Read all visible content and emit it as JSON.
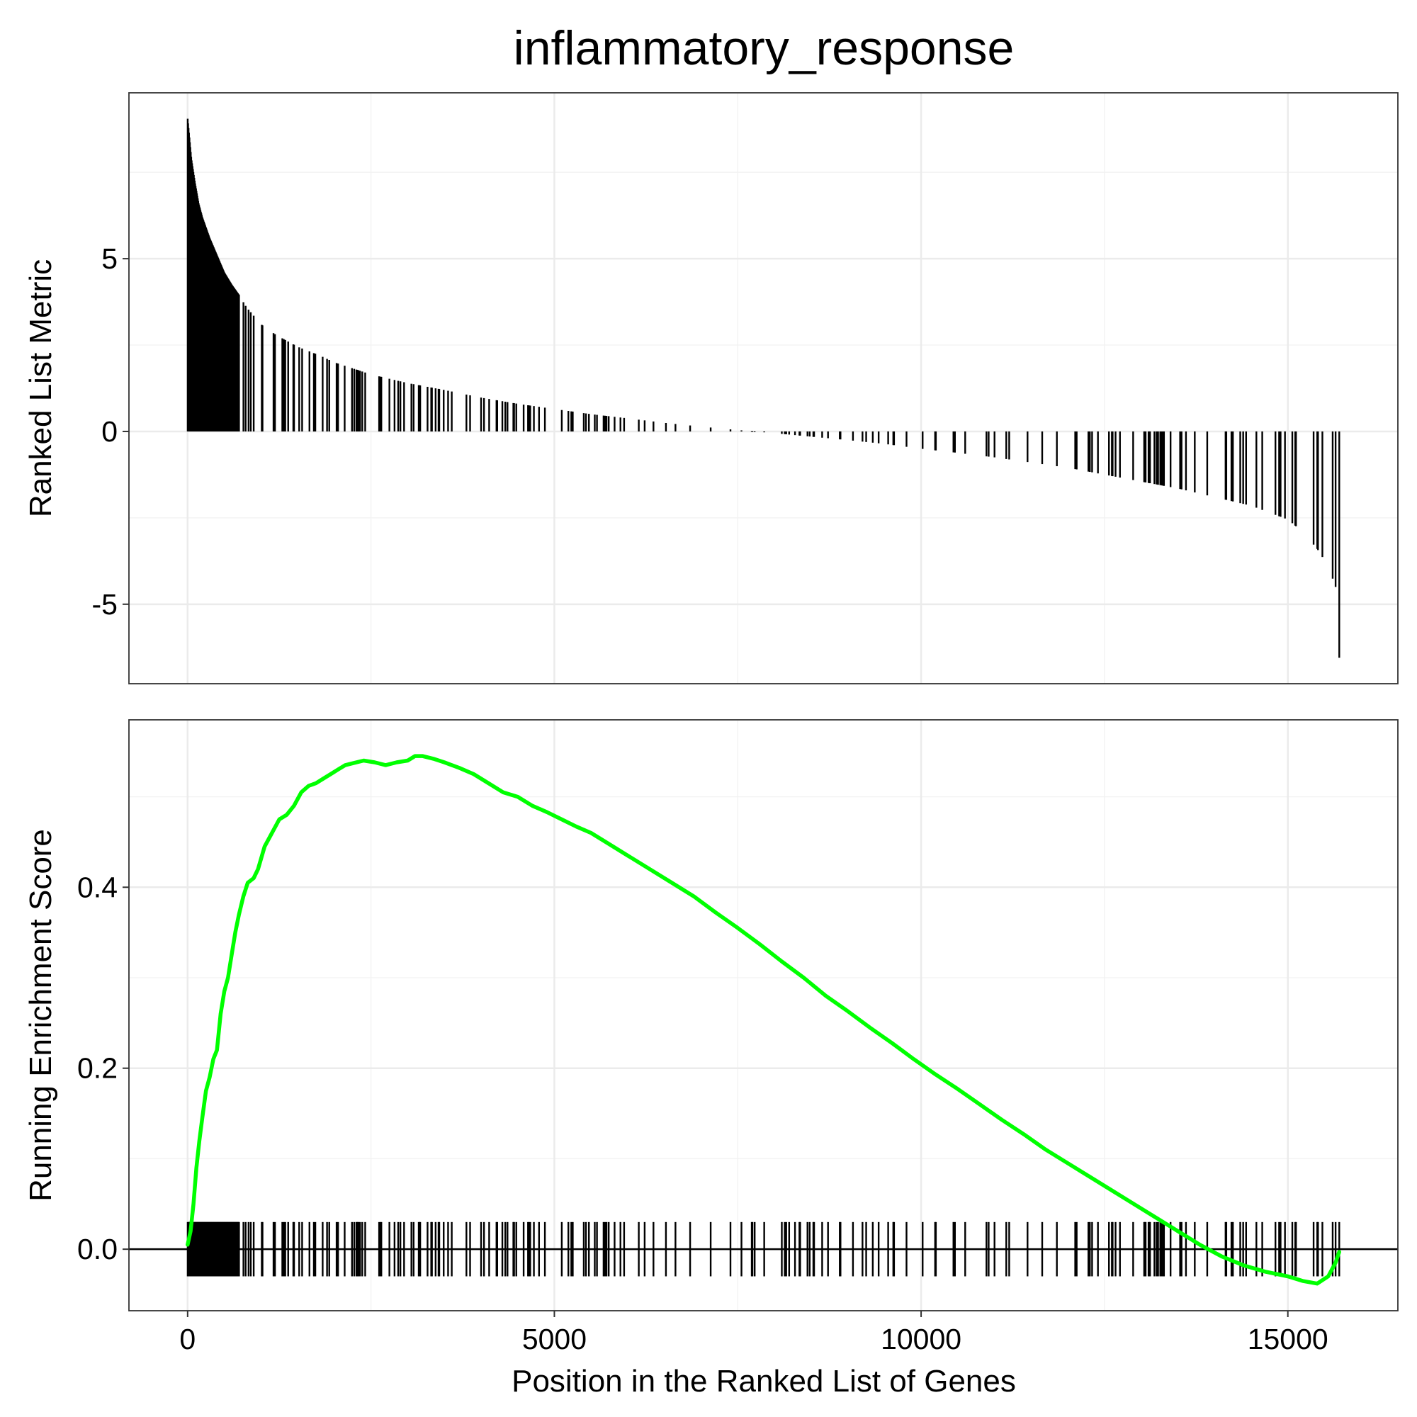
{
  "chart_data": {
    "type": "gsea",
    "title": "inflammatory_response",
    "xlabel": "Position in the Ranked List of Genes",
    "xlim": [
      -800,
      16500
    ],
    "x_ticks": [
      0,
      5000,
      10000,
      15000
    ],
    "x_tick_labels": [
      "0",
      "5000",
      "10000",
      "15000"
    ],
    "n_genes": 15700,
    "panels": {
      "ranked_metric": {
        "ylabel": "Ranked List Metric",
        "ylim": [
          -7.3,
          9.8
        ],
        "y_ticks": [
          5,
          0,
          -5
        ],
        "y_tick_labels": [
          "5",
          "0",
          "-5"
        ],
        "curve": [
          [
            0,
            9.05
          ],
          [
            20,
            8.6
          ],
          [
            50,
            7.9
          ],
          [
            100,
            7.2
          ],
          [
            150,
            6.6
          ],
          [
            200,
            6.2
          ],
          [
            300,
            5.6
          ],
          [
            400,
            5.1
          ],
          [
            500,
            4.6
          ],
          [
            600,
            4.25
          ],
          [
            700,
            3.95
          ],
          [
            800,
            3.6
          ],
          [
            1000,
            3.1
          ],
          [
            1200,
            2.8
          ],
          [
            1500,
            2.45
          ],
          [
            1800,
            2.2
          ],
          [
            2000,
            2.0
          ],
          [
            2500,
            1.65
          ],
          [
            3000,
            1.4
          ],
          [
            3500,
            1.2
          ],
          [
            4000,
            0.98
          ],
          [
            4500,
            0.8
          ],
          [
            5000,
            0.65
          ],
          [
            5500,
            0.5
          ],
          [
            6000,
            0.38
          ],
          [
            6500,
            0.25
          ],
          [
            7000,
            0.14
          ],
          [
            7500,
            0.04
          ],
          [
            8000,
            -0.05
          ],
          [
            8500,
            -0.15
          ],
          [
            9000,
            -0.25
          ],
          [
            9500,
            -0.36
          ],
          [
            10000,
            -0.5
          ],
          [
            10500,
            -0.62
          ],
          [
            11000,
            -0.75
          ],
          [
            11500,
            -0.9
          ],
          [
            12000,
            -1.05
          ],
          [
            12500,
            -1.25
          ],
          [
            13000,
            -1.45
          ],
          [
            13500,
            -1.65
          ],
          [
            14000,
            -1.9
          ],
          [
            14500,
            -2.15
          ],
          [
            15000,
            -2.55
          ],
          [
            15200,
            -2.9
          ],
          [
            15400,
            -3.4
          ],
          [
            15550,
            -3.9
          ],
          [
            15650,
            -4.5
          ],
          [
            15700,
            -6.55
          ]
        ]
      },
      "running_es": {
        "ylabel": "Running Enrichment Score",
        "ylim": [
          -0.068,
          0.585
        ],
        "y_ticks": [
          0.0,
          0.2,
          0.4
        ],
        "y_tick_labels": [
          "0.0",
          "0.2",
          "0.4"
        ],
        "line_color": "#00ff00",
        "rug_range": [
          -0.03,
          0.03
        ],
        "points": [
          [
            0,
            0.005
          ],
          [
            40,
            0.02
          ],
          [
            80,
            0.05
          ],
          [
            120,
            0.09
          ],
          [
            160,
            0.12
          ],
          [
            200,
            0.145
          ],
          [
            250,
            0.175
          ],
          [
            300,
            0.19
          ],
          [
            350,
            0.21
          ],
          [
            400,
            0.22
          ],
          [
            450,
            0.26
          ],
          [
            500,
            0.285
          ],
          [
            550,
            0.3
          ],
          [
            600,
            0.325
          ],
          [
            650,
            0.35
          ],
          [
            700,
            0.37
          ],
          [
            760,
            0.39
          ],
          [
            820,
            0.405
          ],
          [
            900,
            0.41
          ],
          [
            960,
            0.42
          ],
          [
            1050,
            0.445
          ],
          [
            1150,
            0.46
          ],
          [
            1250,
            0.475
          ],
          [
            1350,
            0.48
          ],
          [
            1450,
            0.49
          ],
          [
            1550,
            0.505
          ],
          [
            1650,
            0.512
          ],
          [
            1750,
            0.515
          ],
          [
            1850,
            0.52
          ],
          [
            1950,
            0.525
          ],
          [
            2050,
            0.53
          ],
          [
            2150,
            0.535
          ],
          [
            2250,
            0.537
          ],
          [
            2400,
            0.54
          ],
          [
            2550,
            0.538
          ],
          [
            2700,
            0.535
          ],
          [
            2850,
            0.538
          ],
          [
            3000,
            0.54
          ],
          [
            3100,
            0.545
          ],
          [
            3200,
            0.545
          ],
          [
            3350,
            0.542
          ],
          [
            3500,
            0.538
          ],
          [
            3700,
            0.532
          ],
          [
            3900,
            0.525
          ],
          [
            4100,
            0.515
          ],
          [
            4300,
            0.505
          ],
          [
            4500,
            0.5
          ],
          [
            4700,
            0.49
          ],
          [
            4900,
            0.483
          ],
          [
            5100,
            0.475
          ],
          [
            5300,
            0.467
          ],
          [
            5500,
            0.46
          ],
          [
            5700,
            0.45
          ],
          [
            6000,
            0.435
          ],
          [
            6300,
            0.42
          ],
          [
            6600,
            0.405
          ],
          [
            6900,
            0.39
          ],
          [
            7200,
            0.372
          ],
          [
            7500,
            0.355
          ],
          [
            7800,
            0.337
          ],
          [
            8100,
            0.318
          ],
          [
            8400,
            0.3
          ],
          [
            8700,
            0.28
          ],
          [
            9000,
            0.263
          ],
          [
            9300,
            0.245
          ],
          [
            9600,
            0.228
          ],
          [
            9900,
            0.21
          ],
          [
            10200,
            0.193
          ],
          [
            10500,
            0.177
          ],
          [
            10800,
            0.16
          ],
          [
            11100,
            0.143
          ],
          [
            11400,
            0.127
          ],
          [
            11700,
            0.11
          ],
          [
            12000,
            0.095
          ],
          [
            12300,
            0.08
          ],
          [
            12600,
            0.065
          ],
          [
            12900,
            0.05
          ],
          [
            13200,
            0.035
          ],
          [
            13500,
            0.02
          ],
          [
            13800,
            0.005
          ],
          [
            14100,
            -0.008
          ],
          [
            14400,
            -0.018
          ],
          [
            14700,
            -0.025
          ],
          [
            15000,
            -0.03
          ],
          [
            15200,
            -0.035
          ],
          [
            15400,
            -0.038
          ],
          [
            15550,
            -0.03
          ],
          [
            15650,
            -0.015
          ],
          [
            15700,
            -0.003
          ]
        ]
      }
    },
    "hit_positions_sample": [
      0,
      700,
      790,
      1450,
      1900,
      2350,
      2750,
      2950,
      3150,
      3550,
      3800,
      4000,
      4450,
      4650,
      5100,
      5250,
      5400,
      5900,
      6150,
      6350,
      6650,
      6850,
      7400,
      8200,
      8350,
      8650,
      8900,
      9200,
      9550,
      9800,
      10200,
      10600,
      11000,
      11200,
      11450,
      11850,
      12100,
      12300,
      12600,
      13100,
      13300,
      13550,
      13900,
      14150,
      14350,
      14650,
      14900,
      15100,
      15350,
      15700
    ]
  }
}
